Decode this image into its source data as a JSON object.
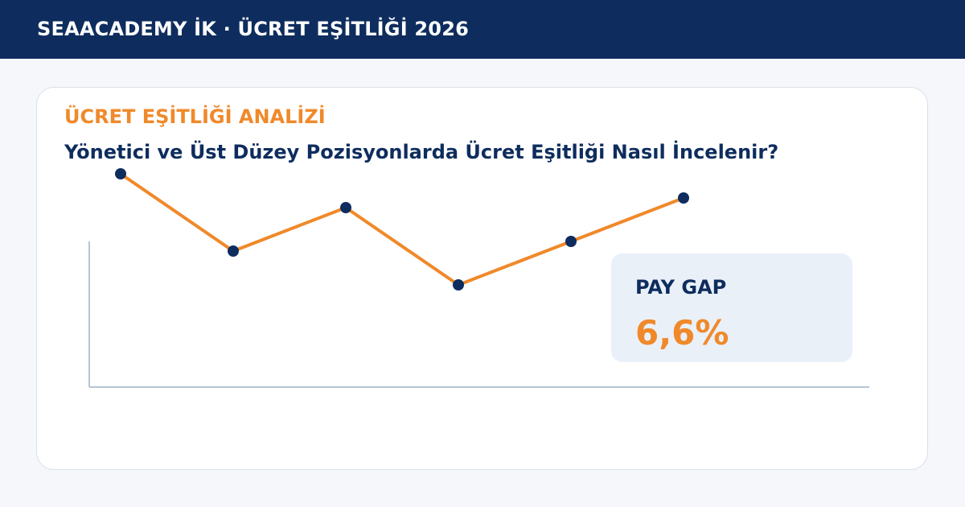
{
  "header": {
    "title": "SEAACADEMY İK · ÜCRET EŞİTLİĞİ 2026"
  },
  "card": {
    "eyebrow": "ÜCRET EŞİTLİĞİ ANALİZİ",
    "headline": "Yönetici ve Üst Düzey Pozisyonlarda Ücret Eşitliği Nasıl İncelenir?"
  },
  "callout": {
    "label": "PAY GAP",
    "value": "6,6%"
  },
  "colors": {
    "header_bg": "#0e2d5e",
    "accent": "#f0892a",
    "navy": "#0e2d5e",
    "axis": "#b7c4d4",
    "callout_bg": "#e9f0f8"
  },
  "chart_data": {
    "type": "line",
    "x": [
      1,
      2,
      3,
      4,
      5,
      6
    ],
    "values": [
      88,
      56,
      74,
      42,
      60,
      78
    ],
    "ylim": [
      0,
      100
    ],
    "title": "",
    "xlabel": "",
    "ylabel": "",
    "grid": false,
    "line_color": "#f0892a",
    "marker_color": "#0e2d5e"
  }
}
